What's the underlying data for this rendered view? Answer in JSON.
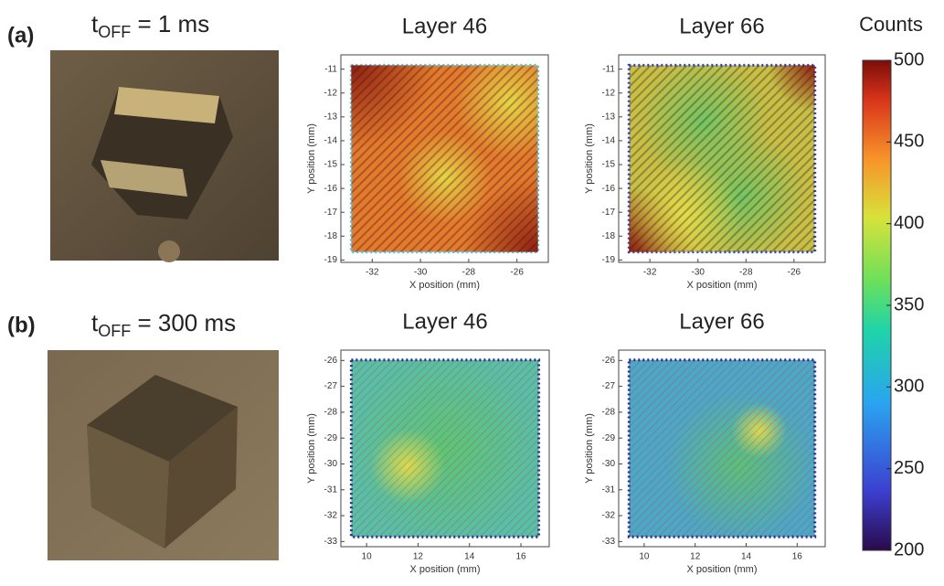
{
  "panel_labels": [
    "(a)",
    "(b)"
  ],
  "conditions": [
    {
      "t": "t",
      "sub": "OFF",
      "rest": " = 1 ms"
    },
    {
      "t": "t",
      "sub": "OFF",
      "rest": " = 300 ms"
    }
  ],
  "plots": [
    {
      "title": "Layer 46",
      "xlabel": "X position (mm)",
      "ylabel": "Y position (mm)",
      "xlim": [
        -33.3,
        -24.7
      ],
      "ylim": [
        -19.1,
        -10.4
      ],
      "xticks": [
        -32,
        -30,
        -28,
        -26
      ],
      "yticks": [
        -11,
        -12,
        -13,
        -14,
        -15,
        -16,
        -17,
        -18,
        -19
      ]
    },
    {
      "title": "Layer 66",
      "xlabel": "X position (mm)",
      "ylabel": "Y position (mm)",
      "xlim": [
        -33.3,
        -24.7
      ],
      "ylim": [
        -19.1,
        -10.4
      ],
      "xticks": [
        -32,
        -30,
        -28,
        -26
      ],
      "yticks": [
        -11,
        -12,
        -13,
        -14,
        -15,
        -16,
        -17,
        -18,
        -19
      ]
    },
    {
      "title": "Layer 46",
      "xlabel": "X position (mm)",
      "ylabel": "Y position (mm)",
      "xlim": [
        9,
        17.1
      ],
      "ylim": [
        -33.2,
        -25.6
      ],
      "xticks": [
        10,
        12,
        14,
        16
      ],
      "yticks": [
        -26,
        -27,
        -28,
        -29,
        -30,
        -31,
        -32,
        -33
      ]
    },
    {
      "title": "Layer 66",
      "xlabel": "X position (mm)",
      "ylabel": "Y position (mm)",
      "xlim": [
        9,
        17.1
      ],
      "ylim": [
        -33.2,
        -25.6
      ],
      "xticks": [
        10,
        12,
        14,
        16
      ],
      "yticks": [
        -26,
        -27,
        -28,
        -29,
        -30,
        -31,
        -32,
        -33
      ]
    }
  ],
  "colorbar": {
    "title": "Counts",
    "lim": [
      200,
      500
    ],
    "ticks": [
      200,
      250,
      300,
      350,
      400,
      450,
      500
    ]
  }
}
